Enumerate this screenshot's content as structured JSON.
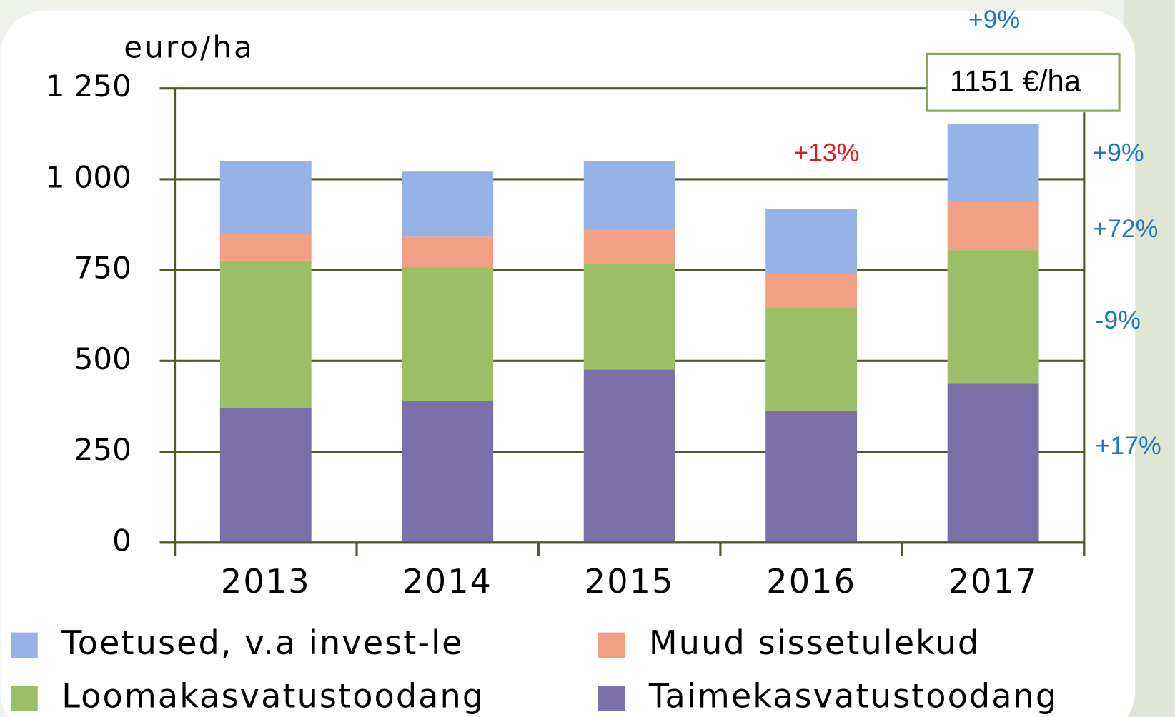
{
  "chart_data": {
    "type": "stacked_bar",
    "y_axis_label": "euro/ha",
    "categories": [
      "2013",
      "2014",
      "2015",
      "2016",
      "2017"
    ],
    "series": [
      {
        "name": "Toetused, v.a invest-le",
        "color": "#95b3e6",
        "values": [
          200,
          179,
          187,
          179,
          214
        ]
      },
      {
        "name": "Muud sissetulekud",
        "color": "#f2a084",
        "values": [
          74,
          84,
          95,
          92,
          132
        ]
      },
      {
        "name": "Loomakasvatustoodang",
        "color": "#9abf67",
        "values": [
          405,
          369,
          292,
          285,
          368
        ]
      },
      {
        "name": "Taimekasvatustoodang",
        "color": "#7b70aa",
        "values": [
          371,
          389,
          476,
          362,
          437
        ]
      }
    ],
    "ylim": [
      0,
      1250
    ],
    "yticks": [
      0,
      250,
      500,
      750,
      {
        "value": 1000,
        "label": "1 000"
      },
      {
        "value": 1250,
        "label": "1 250"
      }
    ],
    "grid": true,
    "annotations": [
      {
        "text": "+9%",
        "color": "#1f77c0"
      },
      {
        "text": "1151 €/ha",
        "color": "#000000"
      },
      {
        "text": "+13%",
        "color": "#e31a1c"
      },
      {
        "text": "+9%",
        "color": "#1f77c0"
      },
      {
        "text": "+72%",
        "color": "#1f77c0"
      },
      {
        "text": "-9%",
        "color": "#1f77c0"
      },
      {
        "text": "+17%",
        "color": "#1f77c0"
      }
    ]
  }
}
